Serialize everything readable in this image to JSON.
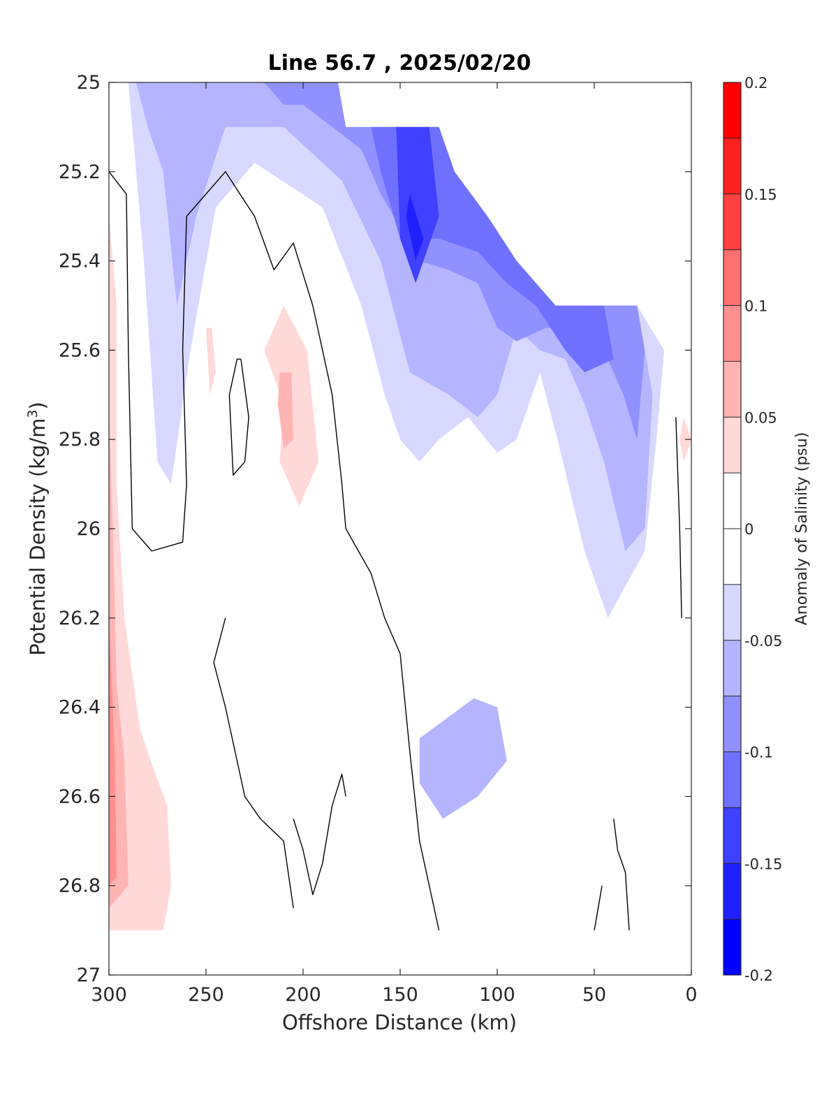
{
  "chart_data": {
    "type": "heatmap",
    "subtype": "filled-contour",
    "title": "Line 56.7 , 2025/02/20",
    "xlabel": "Offshore Distance (km)",
    "ylabel_main": "Potential Density (kg/m",
    "ylabel_sup": "3",
    "ylabel_tail": ")",
    "colorbar_label": "Anomaly of Salinity (psu)",
    "xlim": [
      300,
      0
    ],
    "ylim": [
      27,
      25
    ],
    "x_reversed": true,
    "y_reversed": true,
    "x_ticks": [
      300,
      250,
      200,
      150,
      100,
      50,
      0
    ],
    "x_tick_labels": [
      "300",
      "250",
      "200",
      "150",
      "100",
      "50",
      "0"
    ],
    "y_ticks": [
      25,
      25.2,
      25.4,
      25.6,
      25.8,
      26,
      26.2,
      26.4,
      26.6,
      26.8,
      27
    ],
    "y_tick_labels": [
      "25",
      "25.2",
      "25.4",
      "25.6",
      "25.8",
      "26",
      "26.2",
      "26.4",
      "26.6",
      "26.8",
      "27"
    ],
    "colorbar_range": [
      -0.2,
      0.2
    ],
    "colorbar_levels": [
      -0.2,
      -0.175,
      -0.15,
      -0.125,
      -0.1,
      -0.075,
      -0.05,
      -0.025,
      0,
      0.025,
      0.05,
      0.075,
      0.1,
      0.125,
      0.15,
      0.175,
      0.2
    ],
    "colorbar_tick_values": [
      -0.2,
      -0.15,
      -0.1,
      -0.05,
      0,
      0.05,
      0.1,
      0.15,
      0.2
    ],
    "colorbar_tick_labels": [
      "-0.2",
      "-0.15",
      "-0.1",
      "-0.05",
      "0",
      "0.05",
      "0.1",
      "0.15",
      "0.2"
    ],
    "colormap": [
      "#0000ff",
      "#2020ff",
      "#4040ff",
      "#7070ff",
      "#9090ff",
      "#b4b4ff",
      "#d8d8ff",
      "#ffffff",
      "#ffffff",
      "#ffd8d8",
      "#ffb4b4",
      "#ff9090",
      "#ff7070",
      "#ff4040",
      "#ff2020",
      "#ff0000"
    ],
    "contour_line": {
      "level": 0,
      "color": "#000000"
    },
    "grid": false,
    "regions": [
      {
        "level": -0.025,
        "points": [
          [
            300,
            25
          ],
          [
            201,
            25
          ],
          [
            178,
            25.1
          ],
          [
            130,
            25.1
          ],
          [
            122,
            25.2
          ],
          [
            105,
            25.3
          ],
          [
            90,
            25.4
          ],
          [
            70,
            25.5
          ],
          [
            28,
            25.5
          ],
          [
            14,
            25.6
          ],
          [
            10,
            26.1
          ],
          [
            18,
            26.2
          ],
          [
            38,
            26.3
          ],
          [
            48,
            26.5
          ],
          [
            60,
            26.7
          ],
          [
            58,
            26.9
          ],
          [
            105,
            26.9
          ],
          [
            104,
            26.7
          ],
          [
            108,
            26.5
          ],
          [
            112,
            26.4
          ],
          [
            132,
            26.3
          ],
          [
            145,
            26.2
          ],
          [
            170,
            26.15
          ],
          [
            175,
            26.35
          ],
          [
            190,
            26.5
          ],
          [
            205,
            26.4
          ],
          [
            210,
            26.2
          ],
          [
            205,
            26.05
          ],
          [
            195,
            25.9
          ],
          [
            185,
            25.5
          ],
          [
            190,
            25.3
          ],
          [
            215,
            25.25
          ],
          [
            240,
            25.3
          ],
          [
            255,
            25.5
          ],
          [
            270,
            25.8
          ],
          [
            280,
            26
          ],
          [
            284,
            25.8
          ],
          [
            290,
            25.2
          ],
          [
            300,
            25.1
          ]
        ]
      },
      {
        "level": -0.05,
        "points": [
          [
            300,
            25
          ],
          [
            201,
            25
          ],
          [
            178,
            25.1
          ],
          [
            130,
            25.1
          ],
          [
            122,
            25.2
          ],
          [
            105,
            25.3
          ],
          [
            90,
            25.4
          ],
          [
            70,
            25.5
          ],
          [
            28,
            25.5
          ],
          [
            14,
            25.6
          ],
          [
            18,
            25.8
          ],
          [
            24,
            26.05
          ],
          [
            43,
            26.2
          ],
          [
            55,
            26.05
          ],
          [
            69,
            25.8
          ],
          [
            78,
            25.65
          ],
          [
            90,
            25.8
          ],
          [
            100,
            25.83
          ],
          [
            115,
            25.75
          ],
          [
            130,
            25.8
          ],
          [
            140,
            25.85
          ],
          [
            150,
            25.8
          ],
          [
            158,
            25.7
          ],
          [
            170,
            25.5
          ],
          [
            190,
            25.28
          ],
          [
            225,
            25.18
          ],
          [
            245,
            25.28
          ],
          [
            258,
            25.6
          ],
          [
            268,
            25.9
          ],
          [
            275,
            25.85
          ],
          [
            282,
            25.4
          ],
          [
            290,
            25
          ],
          [
            300,
            25
          ]
        ]
      },
      {
        "level": -0.075,
        "points": [
          [
            286,
            25
          ],
          [
            201,
            25
          ],
          [
            178,
            25.1
          ],
          [
            130,
            25.1
          ],
          [
            122,
            25.2
          ],
          [
            105,
            25.3
          ],
          [
            90,
            25.4
          ],
          [
            70,
            25.5
          ],
          [
            28,
            25.5
          ],
          [
            20,
            25.7
          ],
          [
            24,
            26.0
          ],
          [
            34,
            26.05
          ],
          [
            45,
            25.85
          ],
          [
            55,
            25.72
          ],
          [
            65,
            25.62
          ],
          [
            78,
            25.6
          ],
          [
            90,
            25.55
          ],
          [
            100,
            25.7
          ],
          [
            110,
            25.75
          ],
          [
            125,
            25.7
          ],
          [
            145,
            25.65
          ],
          [
            160,
            25.4
          ],
          [
            180,
            25.22
          ],
          [
            210,
            25.1
          ],
          [
            240,
            25.1
          ],
          [
            255,
            25.3
          ],
          [
            265,
            25.5
          ],
          [
            272,
            25.2
          ],
          [
            280,
            25.1
          ]
        ]
      },
      {
        "level": -0.1,
        "points": [
          [
            220,
            25
          ],
          [
            182,
            25
          ],
          [
            178,
            25.1
          ],
          [
            130,
            25.1
          ],
          [
            122,
            25.2
          ],
          [
            105,
            25.3
          ],
          [
            90,
            25.4
          ],
          [
            70,
            25.5
          ],
          [
            28,
            25.5
          ],
          [
            24,
            25.6
          ],
          [
            28,
            25.8
          ],
          [
            35,
            25.7
          ],
          [
            45,
            25.6
          ],
          [
            60,
            25.55
          ],
          [
            75,
            25.55
          ],
          [
            90,
            25.58
          ],
          [
            100,
            25.55
          ],
          [
            110,
            25.45
          ],
          [
            125,
            25.42
          ],
          [
            140,
            25.4
          ],
          [
            160,
            25.25
          ],
          [
            170,
            25.15
          ],
          [
            200,
            25.05
          ],
          [
            210,
            25.05
          ]
        ]
      },
      {
        "level": -0.125,
        "points": [
          [
            165,
            25.1
          ],
          [
            130,
            25.1
          ],
          [
            122,
            25.2
          ],
          [
            105,
            25.3
          ],
          [
            90,
            25.4
          ],
          [
            70,
            25.5
          ],
          [
            45,
            25.5
          ],
          [
            40,
            25.62
          ],
          [
            55,
            25.65
          ],
          [
            65,
            25.6
          ],
          [
            80,
            25.5
          ],
          [
            95,
            25.45
          ],
          [
            110,
            25.38
          ],
          [
            130,
            25.35
          ],
          [
            150,
            25.35
          ],
          [
            160,
            25.2
          ]
        ]
      },
      {
        "level": -0.15,
        "points": [
          [
            152,
            25.1
          ],
          [
            135,
            25.1
          ],
          [
            130,
            25.3
          ],
          [
            142,
            25.45
          ],
          [
            150,
            25.35
          ]
        ]
      },
      {
        "level": -0.175,
        "points": [
          [
            145,
            25.25
          ],
          [
            138,
            25.35
          ],
          [
            142,
            25.4
          ],
          [
            147,
            25.3
          ]
        ]
      },
      {
        "level": -0.075,
        "points": [
          [
            140,
            26.47
          ],
          [
            112,
            26.38
          ],
          [
            100,
            26.4
          ],
          [
            95,
            26.52
          ],
          [
            110,
            26.6
          ],
          [
            128,
            26.65
          ],
          [
            140,
            26.57
          ]
        ]
      },
      {
        "level": -0.025,
        "points": [
          [
            152,
            26.2
          ],
          [
            148,
            26.3
          ],
          [
            150,
            26.5
          ],
          [
            135,
            26.7
          ],
          [
            115,
            26.8
          ],
          [
            100,
            26.9
          ],
          [
            130,
            26.9
          ],
          [
            145,
            26.72
          ],
          [
            158,
            26.6
          ],
          [
            165,
            26.45
          ]
        ]
      },
      {
        "level": 0.025,
        "points": [
          [
            300,
            25.2
          ],
          [
            294,
            25.4
          ],
          [
            292,
            25.8
          ],
          [
            292,
            26.1
          ],
          [
            280,
            26.2
          ],
          [
            272,
            26.4
          ],
          [
            265,
            26.6
          ],
          [
            262,
            26.8
          ],
          [
            260,
            26.9
          ],
          [
            300,
            26.9
          ]
        ]
      },
      {
        "level": 0.05,
        "points": [
          [
            300,
            25.3
          ],
          [
            296,
            25.5
          ],
          [
            296,
            25.9
          ],
          [
            292,
            26.2
          ],
          [
            284,
            26.45
          ],
          [
            276,
            26.55
          ],
          [
            270,
            26.62
          ],
          [
            268,
            26.8
          ],
          [
            272,
            26.9
          ],
          [
            300,
            26.9
          ]
        ]
      },
      {
        "level": 0.075,
        "points": [
          [
            300,
            25.75
          ],
          [
            298,
            26.0
          ],
          [
            296,
            26.35
          ],
          [
            292,
            26.52
          ],
          [
            290,
            26.8
          ],
          [
            300,
            26.85
          ]
        ]
      },
      {
        "level": 0.1,
        "points": [
          [
            300,
            26.2
          ],
          [
            297,
            26.5
          ],
          [
            296,
            26.78
          ],
          [
            300,
            26.8
          ]
        ]
      },
      {
        "level": 0.05,
        "points": [
          [
            220,
            25.6
          ],
          [
            210,
            25.72
          ],
          [
            212,
            25.85
          ],
          [
            202,
            25.95
          ],
          [
            192,
            25.85
          ],
          [
            198,
            25.6
          ],
          [
            210,
            25.5
          ]
        ]
      },
      {
        "level": 0.075,
        "points": [
          [
            212,
            25.65
          ],
          [
            206,
            25.65
          ],
          [
            205,
            25.8
          ],
          [
            210,
            25.82
          ],
          [
            213,
            25.72
          ]
        ]
      },
      {
        "level": 0.05,
        "points": [
          [
            250,
            25.55
          ],
          [
            247,
            25.55
          ],
          [
            245,
            25.65
          ],
          [
            248,
            25.7
          ]
        ]
      },
      {
        "level": 0.05,
        "points": [
          [
            4,
            25.75
          ],
          [
            0,
            25.8
          ],
          [
            4,
            25.85
          ],
          [
            6,
            25.8
          ]
        ]
      }
    ],
    "zero_contours": [
      [
        [
          300,
          25.2
        ],
        [
          291,
          25.25
        ],
        [
          290,
          25.6
        ],
        [
          288,
          26.0
        ],
        [
          278,
          26.05
        ],
        [
          262,
          26.03
        ],
        [
          260,
          25.9
        ],
        [
          262,
          25.6
        ],
        [
          260,
          25.3
        ],
        [
          240,
          25.2
        ],
        [
          225,
          25.3
        ],
        [
          215,
          25.42
        ],
        [
          205,
          25.36
        ],
        [
          195,
          25.5
        ],
        [
          185,
          25.7
        ],
        [
          180,
          25.9
        ],
        [
          178,
          26.0
        ],
        [
          165,
          26.1
        ],
        [
          158,
          26.2
        ],
        [
          150,
          26.28
        ],
        [
          145,
          26.5
        ],
        [
          140,
          26.7
        ],
        [
          130,
          26.9
        ]
      ],
      [
        [
          232,
          25.62
        ],
        [
          228,
          25.75
        ],
        [
          230,
          25.85
        ],
        [
          236,
          25.88
        ],
        [
          238,
          25.7
        ],
        [
          234,
          25.62
        ],
        [
          232,
          25.62
        ]
      ],
      [
        [
          240,
          26.2
        ],
        [
          246,
          26.3
        ],
        [
          240,
          26.4
        ],
        [
          230,
          26.6
        ],
        [
          222,
          26.65
        ],
        [
          210,
          26.7
        ],
        [
          205,
          26.85
        ]
      ],
      [
        [
          205,
          26.65
        ],
        [
          200,
          26.72
        ],
        [
          195,
          26.82
        ],
        [
          190,
          26.75
        ],
        [
          185,
          26.62
        ],
        [
          180,
          26.55
        ],
        [
          178,
          26.6
        ]
      ],
      [
        [
          40,
          26.65
        ],
        [
          38,
          26.72
        ],
        [
          34,
          26.77
        ],
        [
          32,
          26.9
        ]
      ],
      [
        [
          8,
          25.75
        ],
        [
          6,
          26.0
        ],
        [
          5,
          26.2
        ]
      ],
      [
        [
          46,
          26.8
        ],
        [
          50,
          26.9
        ]
      ]
    ]
  }
}
